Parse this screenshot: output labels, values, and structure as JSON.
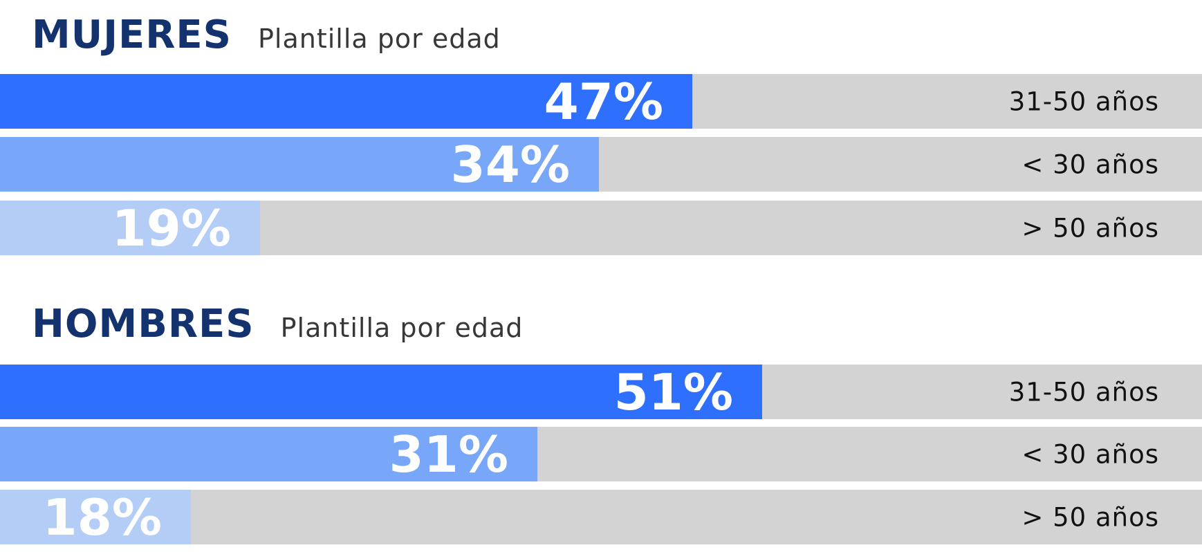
{
  "chart_data": [
    {
      "type": "bar",
      "orientation": "horizontal",
      "title": "MUJERES",
      "subtitle": "Plantilla por edad",
      "categories": [
        "31-50 años",
        "< 30 años",
        "> 50 años"
      ],
      "values": [
        47,
        34,
        19
      ],
      "labels": [
        "47%",
        "34%",
        "19%"
      ],
      "xlim": [
        0,
        100
      ]
    },
    {
      "type": "bar",
      "orientation": "horizontal",
      "title": "HOMBRES",
      "subtitle": "Plantilla por edad",
      "categories": [
        "31-50 años",
        "< 30 años",
        "> 50 años"
      ],
      "values": [
        51,
        31,
        18
      ],
      "labels": [
        "51%",
        "31%",
        "18%"
      ],
      "xlim": [
        0,
        100
      ]
    }
  ],
  "colors": {
    "title": "#14336e",
    "bar1": "#2e6ffe",
    "bar2": "#78a6f9",
    "bar3": "#b3cdf6",
    "track": "#d3d3d3"
  }
}
